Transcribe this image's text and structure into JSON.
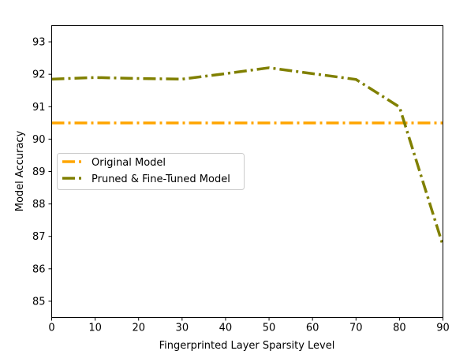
{
  "chart_data": {
    "type": "line",
    "title": "",
    "xlabel": "Fingerprinted Layer Sparsity Level",
    "ylabel": "Model Accuracy",
    "xlim": [
      0,
      90
    ],
    "ylim": [
      84.5,
      93.5
    ],
    "xticks": [
      0,
      10,
      20,
      30,
      40,
      50,
      60,
      70,
      80,
      90
    ],
    "yticks": [
      85,
      86,
      87,
      88,
      89,
      90,
      91,
      92,
      93
    ],
    "grid": false,
    "legend_position": "center-left",
    "series": [
      {
        "name": "Original Model",
        "color": "#FFA500",
        "line_style": "dash-dot",
        "x": [
          0,
          90
        ],
        "y": [
          90.5,
          90.5
        ]
      },
      {
        "name": "Pruned & Fine-Tuned Model",
        "color": "#808000",
        "line_style": "dash-dot",
        "x": [
          0,
          10,
          20,
          30,
          40,
          50,
          60,
          70,
          80,
          90
        ],
        "y": [
          91.85,
          91.9,
          91.87,
          91.85,
          92.02,
          92.2,
          92.02,
          91.84,
          90.99,
          86.72
        ]
      }
    ]
  }
}
